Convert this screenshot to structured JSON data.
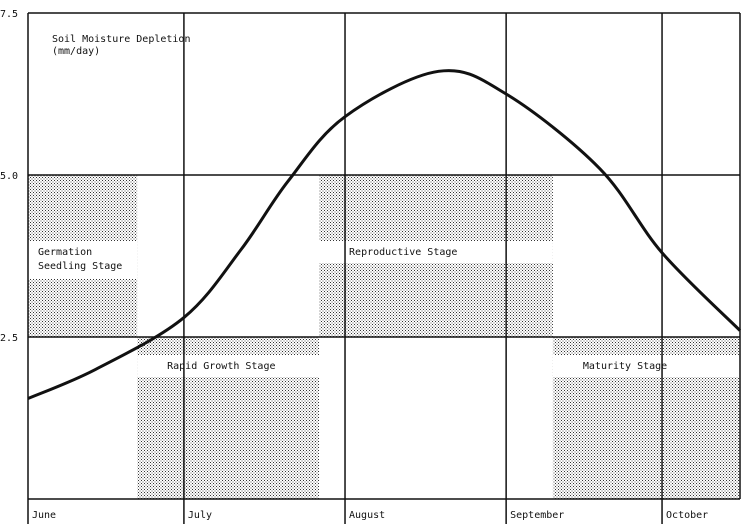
{
  "chart_data": {
    "type": "line",
    "title": "Soil Moisture Depletion",
    "ylabel": "(mm/day)",
    "ylim": [
      0,
      7.5
    ],
    "yticks": [
      "7.5",
      "5.0",
      "2.5"
    ],
    "ytick_values": [
      7.5,
      5.0,
      2.5
    ],
    "xlim": [
      "06-01",
      "10-16"
    ],
    "xticks": [
      {
        "label": "June",
        "date": "06-01"
      },
      {
        "label": "July",
        "date": "07-01"
      },
      {
        "label": "August",
        "date": "08-01"
      },
      {
        "label": "September",
        "date": "09-01"
      },
      {
        "label": "October",
        "date": "10-01"
      }
    ],
    "grid": true,
    "series": [
      {
        "color": "#111111",
        "points": [
          {
            "x": "06-01",
            "y": 1.55
          },
          {
            "x": "06-14",
            "y": 2.0
          },
          {
            "x": "07-01",
            "y": 2.8
          },
          {
            "x": "07-12",
            "y": 3.85
          },
          {
            "x": "07-21",
            "y": 4.9
          },
          {
            "x": "08-01",
            "y": 5.9
          },
          {
            "x": "08-19",
            "y": 6.6
          },
          {
            "x": "09-01",
            "y": 6.25
          },
          {
            "x": "09-19",
            "y": 5.1
          },
          {
            "x": "10-01",
            "y": 3.8
          },
          {
            "x": "10-16",
            "y": 2.6
          }
        ]
      }
    ],
    "stages": [
      {
        "label": "Germation",
        "label2": "Seedling Stage",
        "start": "06-01",
        "end": "06-22",
        "ymin": 2.5,
        "ymax": 5.0
      },
      {
        "label": "Rapid Growth Stage",
        "start": "06-22",
        "end": "07-27",
        "ymin": 0,
        "ymax": 2.5
      },
      {
        "label": "Reproductive Stage",
        "start": "07-27",
        "end": "09-10",
        "ymin": 2.5,
        "ymax": 5.0
      },
      {
        "label": "Maturity Stage",
        "start": "09-10",
        "end": "10-16",
        "ymin": 0,
        "ymax": 2.5
      }
    ],
    "stage_fill_color": "#9a9a9a"
  }
}
